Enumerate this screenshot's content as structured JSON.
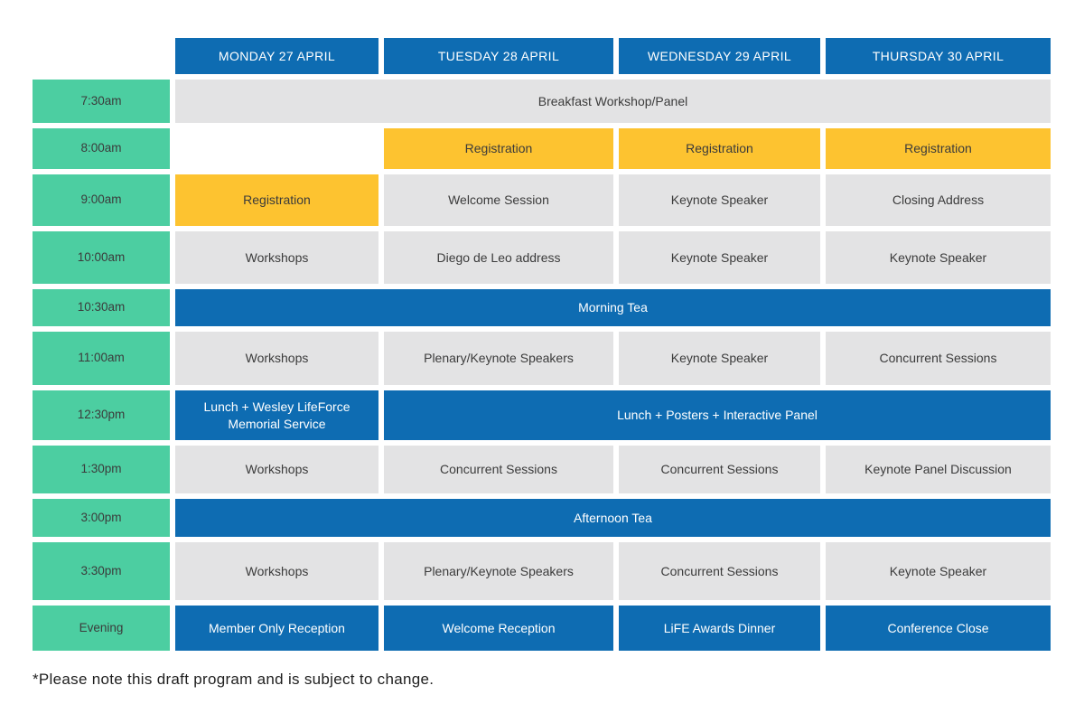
{
  "colors": {
    "header_blue": "#0E6CB2",
    "time_teal": "#4CCEA1",
    "event_gray": "#E3E3E4",
    "highlight_yellow": "#FDC330",
    "text_dark": "#3B3B3B",
    "text_white": "#FFFFFF"
  },
  "schedule": {
    "days": [
      "MONDAY 27 APRIL",
      "TUESDAY 28 APRIL",
      "WEDNESDAY 29 APRIL",
      "THURSDAY 30 APRIL"
    ],
    "rows": [
      {
        "time": "7:30am",
        "cells": [
          {
            "label": "Breakfast Workshop/Panel",
            "type": "gray",
            "col": 0,
            "span": 4
          }
        ]
      },
      {
        "time": "8:00am",
        "cells": [
          {
            "label": "Registration",
            "type": "yellow",
            "col": 1,
            "span": 1
          },
          {
            "label": "Registration",
            "type": "yellow",
            "col": 2,
            "span": 1
          },
          {
            "label": "Registration",
            "type": "yellow",
            "col": 3,
            "span": 1
          }
        ]
      },
      {
        "time": "9:00am",
        "cells": [
          {
            "label": "Registration",
            "type": "yellow",
            "col": 0,
            "span": 1
          },
          {
            "label": "Welcome Session",
            "type": "gray",
            "col": 1,
            "span": 1
          },
          {
            "label": "Keynote Speaker",
            "type": "gray",
            "col": 2,
            "span": 1
          },
          {
            "label": "Closing Address",
            "type": "gray",
            "col": 3,
            "span": 1
          }
        ]
      },
      {
        "time": "10:00am",
        "cells": [
          {
            "label": "Workshops",
            "type": "gray",
            "col": 0,
            "span": 1
          },
          {
            "label": "Diego de Leo address",
            "type": "gray",
            "col": 1,
            "span": 1
          },
          {
            "label": "Keynote Speaker",
            "type": "gray",
            "col": 2,
            "span": 1
          },
          {
            "label": "Keynote Speaker",
            "type": "gray",
            "col": 3,
            "span": 1
          }
        ]
      },
      {
        "time": "10:30am",
        "cells": [
          {
            "label": "Morning Tea",
            "type": "blue",
            "col": 0,
            "span": 4
          }
        ]
      },
      {
        "time": "11:00am",
        "cells": [
          {
            "label": "Workshops",
            "type": "gray",
            "col": 0,
            "span": 1
          },
          {
            "label": "Plenary/Keynote Speakers",
            "type": "gray",
            "col": 1,
            "span": 1
          },
          {
            "label": "Keynote Speaker",
            "type": "gray",
            "col": 2,
            "span": 1
          },
          {
            "label": "Concurrent Sessions",
            "type": "gray",
            "col": 3,
            "span": 1
          }
        ]
      },
      {
        "time": "12:30pm",
        "cells": [
          {
            "label": "Lunch + Wesley LifeForce Memorial Service",
            "type": "blue",
            "col": 0,
            "span": 1
          },
          {
            "label": "Lunch + Posters + Interactive Panel",
            "type": "blue",
            "col": 1,
            "span": 3
          }
        ]
      },
      {
        "time": "1:30pm",
        "cells": [
          {
            "label": "Workshops",
            "type": "gray",
            "col": 0,
            "span": 1
          },
          {
            "label": "Concurrent Sessions",
            "type": "gray",
            "col": 1,
            "span": 1
          },
          {
            "label": "Concurrent Sessions",
            "type": "gray",
            "col": 2,
            "span": 1
          },
          {
            "label": "Keynote Panel Discussion",
            "type": "gray",
            "col": 3,
            "span": 1
          }
        ]
      },
      {
        "time": "3:00pm",
        "cells": [
          {
            "label": "Afternoon Tea",
            "type": "blue",
            "col": 0,
            "span": 4
          }
        ]
      },
      {
        "time": "3:30pm",
        "cells": [
          {
            "label": "Workshops",
            "type": "gray",
            "col": 0,
            "span": 1
          },
          {
            "label": "Plenary/Keynote Speakers",
            "type": "gray",
            "col": 1,
            "span": 1
          },
          {
            "label": "Concurrent Sessions",
            "type": "gray",
            "col": 2,
            "span": 1
          },
          {
            "label": "Keynote Speaker",
            "type": "gray",
            "col": 3,
            "span": 1
          }
        ]
      },
      {
        "time": "Evening",
        "cells": [
          {
            "label": "Member Only Reception",
            "type": "blue",
            "col": 0,
            "span": 1
          },
          {
            "label": "Welcome Reception",
            "type": "blue",
            "col": 1,
            "span": 1
          },
          {
            "label": "LiFE Awards Dinner",
            "type": "blue",
            "col": 2,
            "span": 1
          },
          {
            "label": "Conference Close",
            "type": "blue",
            "col": 3,
            "span": 1
          }
        ]
      }
    ]
  },
  "footer": {
    "note": "*Please note this draft program and is subject to change."
  }
}
